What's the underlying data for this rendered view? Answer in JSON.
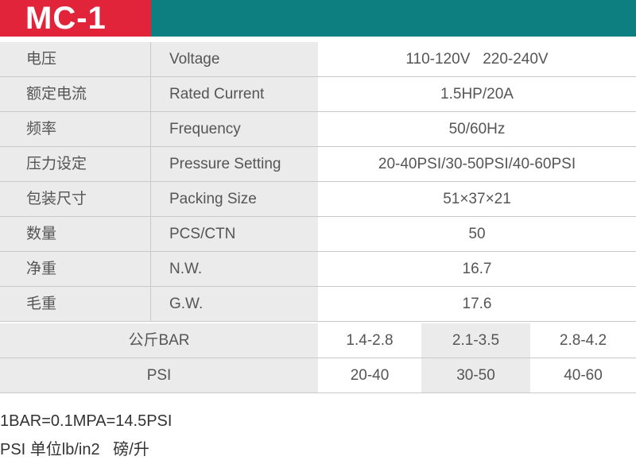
{
  "header": {
    "title": "MC-1",
    "colors": {
      "red": "#e2243a",
      "teal": "#0d7f80"
    }
  },
  "specs": [
    {
      "cn": "电压",
      "en": "Voltage",
      "value": "110-120V   220-240V"
    },
    {
      "cn": "额定电流",
      "en": "Rated Current",
      "value": "1.5HP/20A"
    },
    {
      "cn": "频率",
      "en": "Frequency",
      "value": "50/60Hz"
    },
    {
      "cn": "压力设定",
      "en": "Pressure Setting",
      "value": "20-40PSI/30-50PSI/40-60PSI"
    },
    {
      "cn": "包装尺寸",
      "en": "Packing Size",
      "value": "51×37×21"
    },
    {
      "cn": "数量",
      "en": "PCS/CTN",
      "value": "50"
    },
    {
      "cn": "净重",
      "en": "N.W.",
      "value": "16.7"
    },
    {
      "cn": "毛重",
      "en": "G.W.",
      "value": "17.6"
    }
  ],
  "pressure": {
    "bar_label": "公斤BAR",
    "bar_values": [
      "1.4-2.8",
      "2.1-3.5",
      "2.8-4.2"
    ],
    "psi_label": "PSI",
    "psi_values": [
      "20-40",
      "30-50",
      "40-60"
    ]
  },
  "notes": [
    "1BAR=0.1MPA=14.5PSI",
    "PSI 单位lb/in2   磅/升"
  ]
}
